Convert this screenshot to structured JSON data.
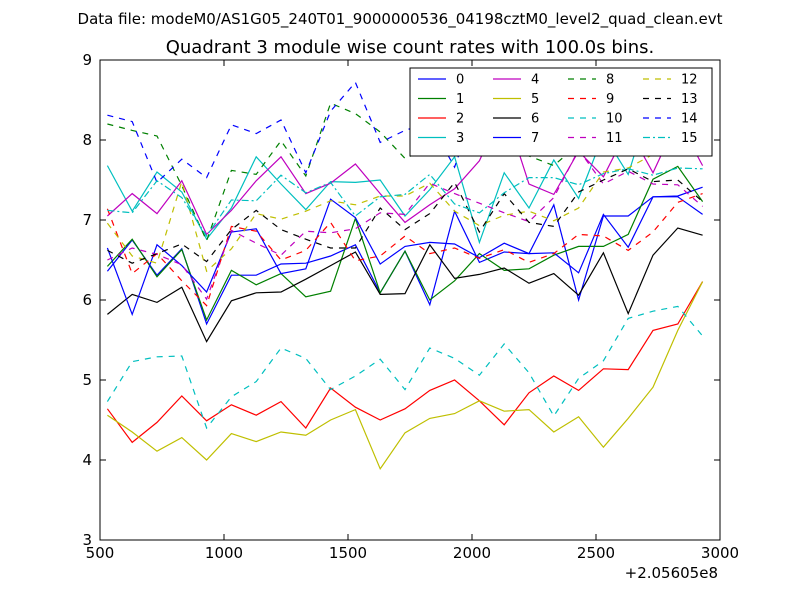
{
  "suptitle": "Data file: modeM0/AS1G05_240T01_9000000536_04198cztM0_level2_quad_clean.evt",
  "chart_data": {
    "type": "line",
    "title": "Quadrant 3 module wise count rates with 100.0s bins.",
    "xlabel": "",
    "ylabel": "",
    "x_offset_label": "+2.05605e8",
    "xlim": [
      500,
      3000
    ],
    "ylim": [
      3,
      9
    ],
    "xticks": [
      "500",
      "1000",
      "1500",
      "2000",
      "2500",
      "3000"
    ],
    "yticks": [
      "3",
      "4",
      "5",
      "6",
      "7",
      "8",
      "9"
    ],
    "grid": false,
    "legend_position": "top-right",
    "x": [
      530,
      630,
      730,
      830,
      930,
      1030,
      1130,
      1230,
      1330,
      1430,
      1530,
      1630,
      1730,
      1830,
      1930,
      2030,
      2130,
      2230,
      2330,
      2430,
      2530,
      2630,
      2730,
      2830,
      2930
    ],
    "series": [
      {
        "name": "0",
        "color": "#0000ff",
        "style": "solid",
        "values": [
          6.36,
          6.75,
          6.31,
          6.64,
          5.7,
          6.31,
          6.31,
          6.45,
          6.46,
          6.55,
          6.69,
          6.09,
          6.61,
          5.94,
          7.11,
          6.47,
          6.6,
          6.58,
          7.19,
          6.0,
          7.05,
          7.05,
          7.29,
          7.3,
          7.41
        ]
      },
      {
        "name": "1",
        "color": "#008000",
        "style": "solid",
        "values": [
          6.42,
          6.76,
          6.29,
          6.63,
          5.75,
          6.37,
          6.19,
          6.33,
          6.04,
          6.11,
          7.02,
          6.09,
          6.61,
          6.0,
          6.24,
          6.58,
          6.37,
          6.39,
          6.56,
          6.67,
          6.67,
          6.82,
          7.51,
          7.67,
          7.23
        ]
      },
      {
        "name": "2",
        "color": "#ff0000",
        "style": "solid",
        "values": [
          4.64,
          4.22,
          4.47,
          4.8,
          4.49,
          4.69,
          4.56,
          4.73,
          4.4,
          4.9,
          4.66,
          4.5,
          4.64,
          4.87,
          5.0,
          4.74,
          4.44,
          4.84,
          5.05,
          4.87,
          5.14,
          5.13,
          5.62,
          5.7,
          6.23
        ]
      },
      {
        "name": "3",
        "color": "#00bfbf",
        "style": "solid",
        "values": [
          7.68,
          7.11,
          7.6,
          7.35,
          6.76,
          7.15,
          7.79,
          7.45,
          7.13,
          7.48,
          7.47,
          7.5,
          7.05,
          7.38,
          7.79,
          6.72,
          7.59,
          7.15,
          7.75,
          7.27,
          8.07,
          7.57,
          8.56,
          8.74,
          8.57
        ]
      },
      {
        "name": "4",
        "color": "#bf00bf",
        "style": "solid",
        "values": [
          7.05,
          7.33,
          7.08,
          7.49,
          6.82,
          7.12,
          7.49,
          7.79,
          7.33,
          7.46,
          7.7,
          7.33,
          6.97,
          7.19,
          7.39,
          7.74,
          8.41,
          7.45,
          7.32,
          7.86,
          7.54,
          8.15,
          7.59,
          8.26,
          7.68
        ]
      },
      {
        "name": "5",
        "color": "#bfbf00",
        "style": "solid",
        "values": [
          4.56,
          4.35,
          4.11,
          4.28,
          4.0,
          4.33,
          4.23,
          4.35,
          4.31,
          4.5,
          4.63,
          3.89,
          4.34,
          4.52,
          4.58,
          4.74,
          4.61,
          4.63,
          4.35,
          4.54,
          4.16,
          4.52,
          4.91,
          5.62,
          6.23
        ]
      },
      {
        "name": "6",
        "color": "#000000",
        "style": "solid",
        "values": [
          5.82,
          6.07,
          5.97,
          6.16,
          5.48,
          5.99,
          6.09,
          6.1,
          6.26,
          6.43,
          6.6,
          6.07,
          6.08,
          6.69,
          6.27,
          6.32,
          6.4,
          6.21,
          6.33,
          6.06,
          6.59,
          5.83,
          6.56,
          6.9,
          6.81
        ]
      },
      {
        "name": "7",
        "color": "#0000ff",
        "style": "solid",
        "values": [
          6.65,
          5.82,
          6.69,
          6.43,
          6.1,
          6.85,
          6.89,
          6.33,
          6.39,
          7.26,
          7.03,
          6.45,
          6.67,
          6.72,
          6.7,
          6.53,
          6.71,
          6.58,
          6.59,
          6.34,
          7.07,
          6.66,
          7.29,
          7.29,
          7.07
        ]
      },
      {
        "name": "8",
        "color": "#008000",
        "style": "dashed",
        "values": [
          8.2,
          8.12,
          8.05,
          7.43,
          6.74,
          7.62,
          7.57,
          7.99,
          7.55,
          8.46,
          8.33,
          8.1,
          7.77,
          7.9,
          8.17,
          8.39,
          8.35,
          7.8,
          7.68,
          7.95,
          8.23,
          8.44,
          8.47,
          8.8,
          8.77
        ]
      },
      {
        "name": "9",
        "color": "#ff0000",
        "style": "dashed",
        "values": [
          7.14,
          6.33,
          6.58,
          6.24,
          5.93,
          6.92,
          6.86,
          6.5,
          6.62,
          6.97,
          6.49,
          6.55,
          6.8,
          6.58,
          6.65,
          6.52,
          6.63,
          6.47,
          6.58,
          6.82,
          6.8,
          6.62,
          6.85,
          7.22,
          7.33
        ]
      },
      {
        "name": "10",
        "color": "#00bfbf",
        "style": "dashed",
        "values": [
          4.73,
          5.23,
          5.29,
          5.3,
          4.4,
          4.79,
          4.98,
          5.4,
          5.27,
          4.88,
          5.05,
          5.26,
          4.88,
          5.4,
          5.27,
          5.06,
          5.45,
          5.09,
          4.55,
          5.02,
          5.24,
          5.77,
          5.86,
          5.92,
          5.55
        ]
      },
      {
        "name": "11",
        "color": "#bf00bf",
        "style": "dashed",
        "values": [
          6.5,
          6.65,
          6.57,
          6.44,
          6.01,
          6.87,
          6.71,
          6.56,
          6.86,
          6.84,
          6.89,
          7.09,
          7.07,
          7.46,
          7.33,
          7.21,
          7.09,
          6.98,
          7.28,
          7.88,
          7.45,
          7.61,
          7.45,
          7.44,
          7.17
        ]
      },
      {
        "name": "12",
        "color": "#bfbf00",
        "style": "dashed",
        "values": [
          6.96,
          6.55,
          6.46,
          7.48,
          6.36,
          6.64,
          7.08,
          7.01,
          7.11,
          7.24,
          7.19,
          7.3,
          7.3,
          7.46,
          7.11,
          6.93,
          7.06,
          7.11,
          6.99,
          7.15,
          7.6,
          7.65,
          7.82,
          8.48,
          8.02
        ]
      },
      {
        "name": "13",
        "color": "#000000",
        "style": "dashed",
        "values": [
          6.62,
          6.46,
          6.58,
          6.7,
          6.48,
          6.88,
          7.12,
          6.88,
          6.76,
          6.65,
          6.65,
          7.15,
          6.88,
          7.08,
          7.47,
          6.85,
          7.33,
          6.97,
          6.92,
          7.35,
          7.5,
          7.64,
          7.48,
          7.5,
          7.23
        ]
      },
      {
        "name": "14",
        "color": "#0000ff",
        "style": "dashed",
        "values": [
          8.31,
          8.23,
          7.47,
          7.76,
          7.53,
          8.19,
          8.08,
          8.25,
          7.59,
          8.36,
          8.72,
          7.97,
          8.12,
          8.22,
          7.66,
          8.56,
          8.5,
          8.54,
          8.01,
          8.28,
          8.46,
          8.75,
          8.75,
          8.77,
          8.6
        ]
      },
      {
        "name": "15",
        "color": "#00bfbf",
        "style": "dashdot",
        "values": [
          7.12,
          7.09,
          7.49,
          7.28,
          6.8,
          7.25,
          7.24,
          7.56,
          7.34,
          7.47,
          7.05,
          7.29,
          7.32,
          7.57,
          7.2,
          7.09,
          7.34,
          7.53,
          7.53,
          7.44,
          7.58,
          7.64,
          7.56,
          7.65,
          7.64
        ]
      }
    ]
  }
}
